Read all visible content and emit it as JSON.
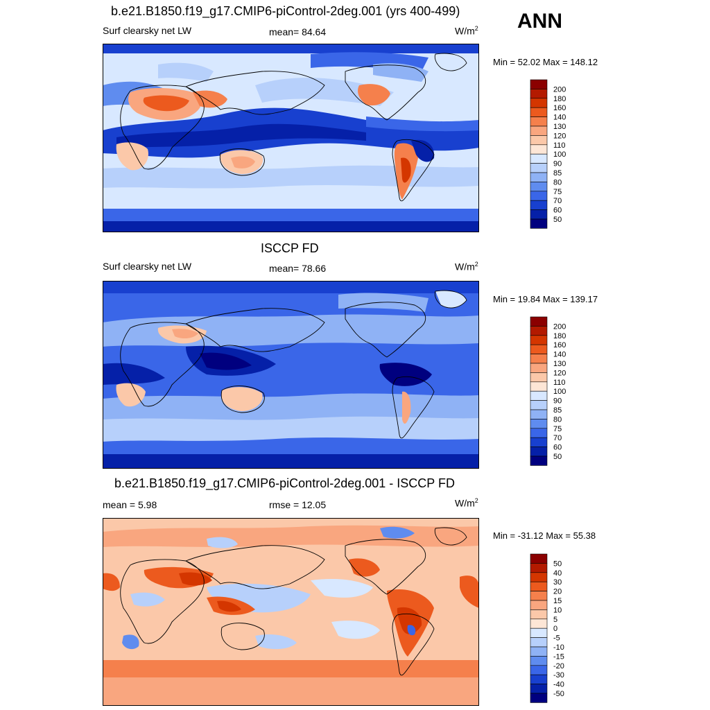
{
  "season": "ANN",
  "panels": [
    {
      "title": "b.e21.B1850.f19_g17.CMIP6-piControl-2deg.001 (yrs 400-499)",
      "left_text": "Surf clearsky net LW",
      "center_text": "mean=  84.64",
      "units": "W/m",
      "units_sup": "2",
      "minmax": "Min =  52.02 Max = 148.12",
      "colorbar": {
        "levels": [
          "200",
          "180",
          "160",
          "140",
          "130",
          "120",
          "110",
          "100",
          "90",
          "85",
          "80",
          "75",
          "70",
          "60",
          "50"
        ],
        "colors": [
          "#8b0000",
          "#b31a00",
          "#d43600",
          "#ec5a1e",
          "#f5804c",
          "#f9a67f",
          "#fbc8a9",
          "#fde6d6",
          "#d8e8ff",
          "#b7d0fb",
          "#8fb2f5",
          "#5f8cef",
          "#3a66e8",
          "#1840cf",
          "#0520a8",
          "#00007f"
        ]
      }
    },
    {
      "title": "ISCCP FD",
      "left_text": "Surf clearsky net LW",
      "center_text": "mean=  78.66",
      "units": "W/m",
      "units_sup": "2",
      "minmax": "Min =  19.84 Max = 139.17",
      "colorbar": {
        "levels": [
          "200",
          "180",
          "160",
          "140",
          "130",
          "120",
          "110",
          "100",
          "90",
          "85",
          "80",
          "75",
          "70",
          "60",
          "50"
        ],
        "colors": [
          "#8b0000",
          "#b31a00",
          "#d43600",
          "#ec5a1e",
          "#f5804c",
          "#f9a67f",
          "#fbc8a9",
          "#fde6d6",
          "#d8e8ff",
          "#b7d0fb",
          "#8fb2f5",
          "#5f8cef",
          "#3a66e8",
          "#1840cf",
          "#0520a8",
          "#00007f"
        ]
      }
    },
    {
      "title": "b.e21.B1850.f19_g17.CMIP6-piControl-2deg.001 - ISCCP FD",
      "left_text": "mean =   5.98",
      "center_text": "rmse =  12.05",
      "units": "W/m",
      "units_sup": "2",
      "minmax": "Min = -31.12 Max =  55.38",
      "colorbar": {
        "levels": [
          "50",
          "40",
          "30",
          "20",
          "15",
          "10",
          "5",
          "0",
          "-5",
          "-10",
          "-15",
          "-20",
          "-30",
          "-40",
          "-50"
        ],
        "colors": [
          "#8b0000",
          "#b31a00",
          "#d43600",
          "#ec5a1e",
          "#f5804c",
          "#f9a67f",
          "#fbc8a9",
          "#fde6d6",
          "#d8e8ff",
          "#b7d0fb",
          "#8fb2f5",
          "#5f8cef",
          "#3a66e8",
          "#1840cf",
          "#0520a8",
          "#00007f"
        ]
      }
    }
  ]
}
